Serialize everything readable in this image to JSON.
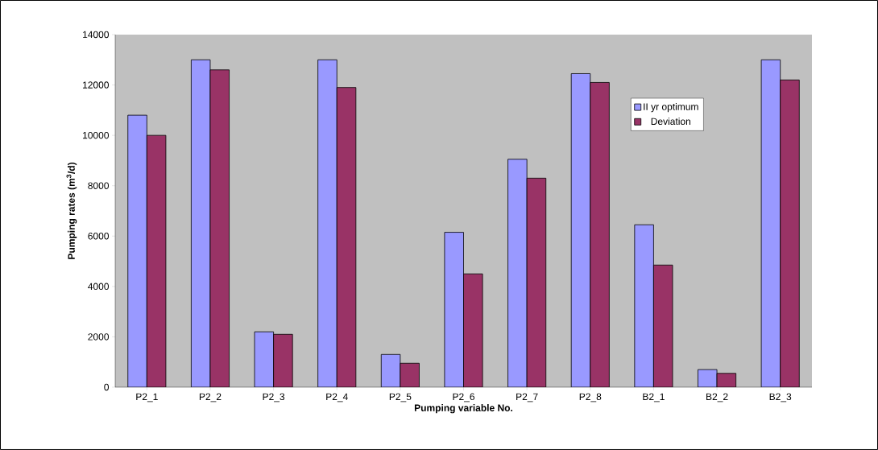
{
  "chart_data": {
    "type": "bar",
    "xlabel": "Pumping variable No.",
    "ylabel": "Pumping rates (m$^{3}$/d)",
    "categories": [
      "P2_1",
      "P2_2",
      "P2_3",
      "P2_4",
      "P2_5",
      "P2_6",
      "P2_7",
      "P2_8",
      "B2_1",
      "B2_2",
      "B2_3"
    ],
    "series": [
      {
        "name": "II yr optimum",
        "color": "#9999ff",
        "values": [
          10800,
          13000,
          2200,
          13000,
          1300,
          6150,
          9050,
          12450,
          6450,
          700,
          13000
        ]
      },
      {
        "name": "Deviation",
        "color": "#993366",
        "values": [
          10000,
          12600,
          2100,
          11900,
          950,
          4500,
          8300,
          12100,
          4850,
          550,
          12200
        ]
      }
    ],
    "ylim": [
      0,
      14000
    ],
    "yticks": [
      0,
      2000,
      4000,
      6000,
      8000,
      10000,
      12000,
      14000
    ],
    "legend": "top right"
  }
}
